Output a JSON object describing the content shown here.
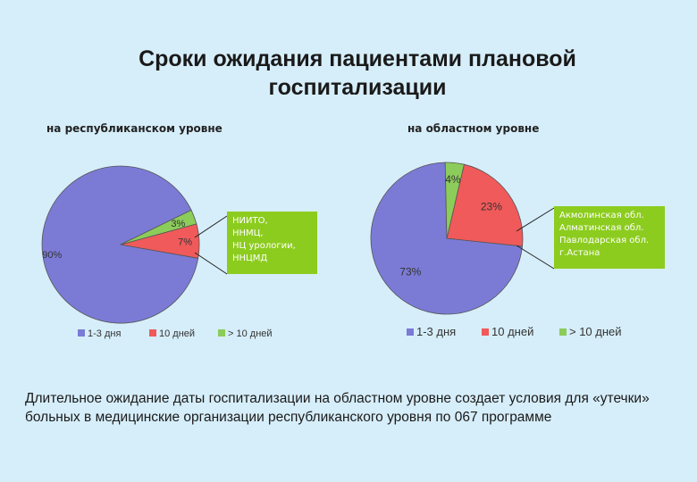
{
  "slide": {
    "title": "Сроки ожидания пациентами плановой госпитализации",
    "caption": "Длительное ожидание даты госпитализации на областном уровне создает условия для «утечки» больных в медицинские организации республиканского уровня по 067 программе"
  },
  "colors": {
    "background": "#d6eefa",
    "series_1_3": "#7b7bd6",
    "series_10": "#f05a5a",
    "series_gt10": "#8ccc5a",
    "note_box": "#8ccc1e"
  },
  "chart_data": [
    {
      "type": "pie",
      "title": "на республиканском уровне",
      "categories": [
        "1-3 дня",
        "10 дней",
        "> 10 дней"
      ],
      "values": [
        90,
        7,
        3
      ],
      "value_labels": [
        "90%",
        "7%",
        "3%"
      ],
      "legend_position": "bottom",
      "callout": [
        "НИИТО,",
        "ННМЦ,",
        "НЦ урологии,",
        "ННЦМД"
      ]
    },
    {
      "type": "pie",
      "title": "на областном уровне",
      "categories": [
        "1-3 дня",
        "10 дней",
        "> 10 дней"
      ],
      "values": [
        73,
        23,
        4
      ],
      "value_labels": [
        "73%",
        "23%",
        "4%"
      ],
      "legend_position": "bottom",
      "callout": [
        "Акмолинская обл.",
        "Алматинская обл.",
        "Павлодарская обл.",
        "г.Астана"
      ]
    }
  ]
}
